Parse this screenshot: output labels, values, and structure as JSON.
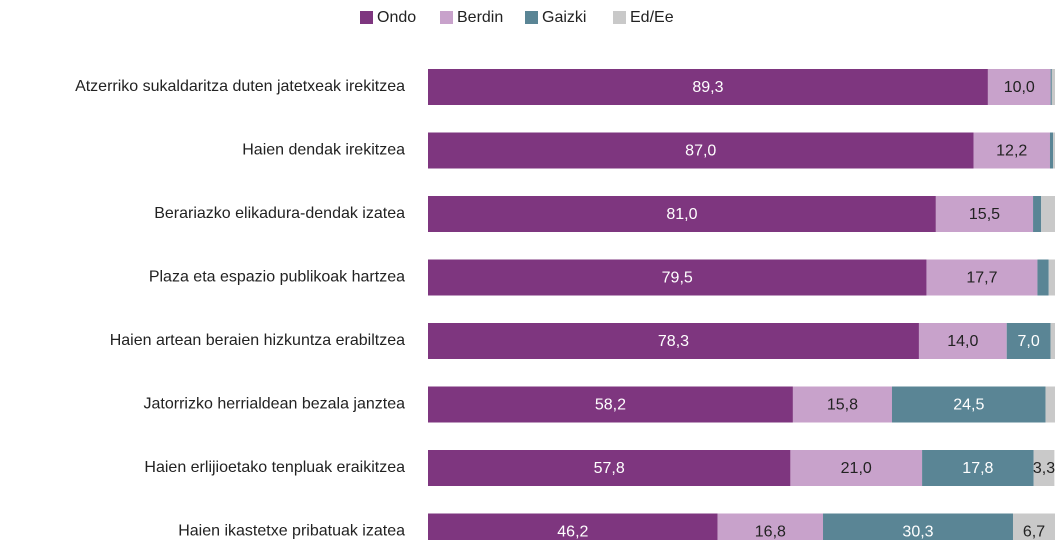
{
  "chart_data": {
    "type": "stacked-barh",
    "categories": [
      "Atzerriko sukaldaritza duten jatetxeak irekitzea",
      "Haien dendak irekitzea",
      "Berariazko elikadura-dendak izatea",
      "Plaza eta espazio publikoak hartzea",
      "Haien artean beraien hizkuntza erabiltzea",
      "Jatorrizko herrialdean bezala janztea",
      "Haien erlijioetako tenpluak eraikitzea",
      "Haien ikastetxe pribatuak izatea"
    ],
    "xlim": [
      0,
      100
    ],
    "series": [
      {
        "name": "Ondo",
        "color": "#7e367f",
        "label_color": "#ffffff",
        "values": [
          89.3,
          87.0,
          81.0,
          79.5,
          78.3,
          58.2,
          57.8,
          46.2
        ],
        "value_labels": [
          "89,3",
          "87,0",
          "81,0",
          "79,5",
          "78,3",
          "58,2",
          "57,8",
          "46,2"
        ]
      },
      {
        "name": "Berdin",
        "color": "#c8a2cb",
        "label_color": "#222222",
        "values": [
          10.0,
          12.2,
          15.5,
          17.7,
          14.0,
          15.8,
          21.0,
          16.8
        ],
        "value_labels": [
          "10,0",
          "12,2",
          "15,5",
          "17,7",
          "14,0",
          "15,8",
          "21,0",
          "16,8"
        ]
      },
      {
        "name": "Gaizki",
        "color": "#5a8595",
        "label_color": "#ffffff",
        "values": [
          0.2,
          0.5,
          1.3,
          1.8,
          7.0,
          24.5,
          17.8,
          30.3
        ],
        "value_labels": [
          null,
          null,
          null,
          null,
          "7,0",
          "24,5",
          "17,8",
          "30,3"
        ]
      },
      {
        "name": "Ed/Ee",
        "color": "#c9c9c9",
        "label_color": "#222222",
        "values": [
          0.5,
          0.3,
          2.2,
          1.0,
          0.7,
          1.5,
          3.3,
          6.7
        ],
        "value_labels": [
          null,
          null,
          null,
          null,
          null,
          null,
          "3,3",
          "6,7"
        ]
      }
    ]
  }
}
